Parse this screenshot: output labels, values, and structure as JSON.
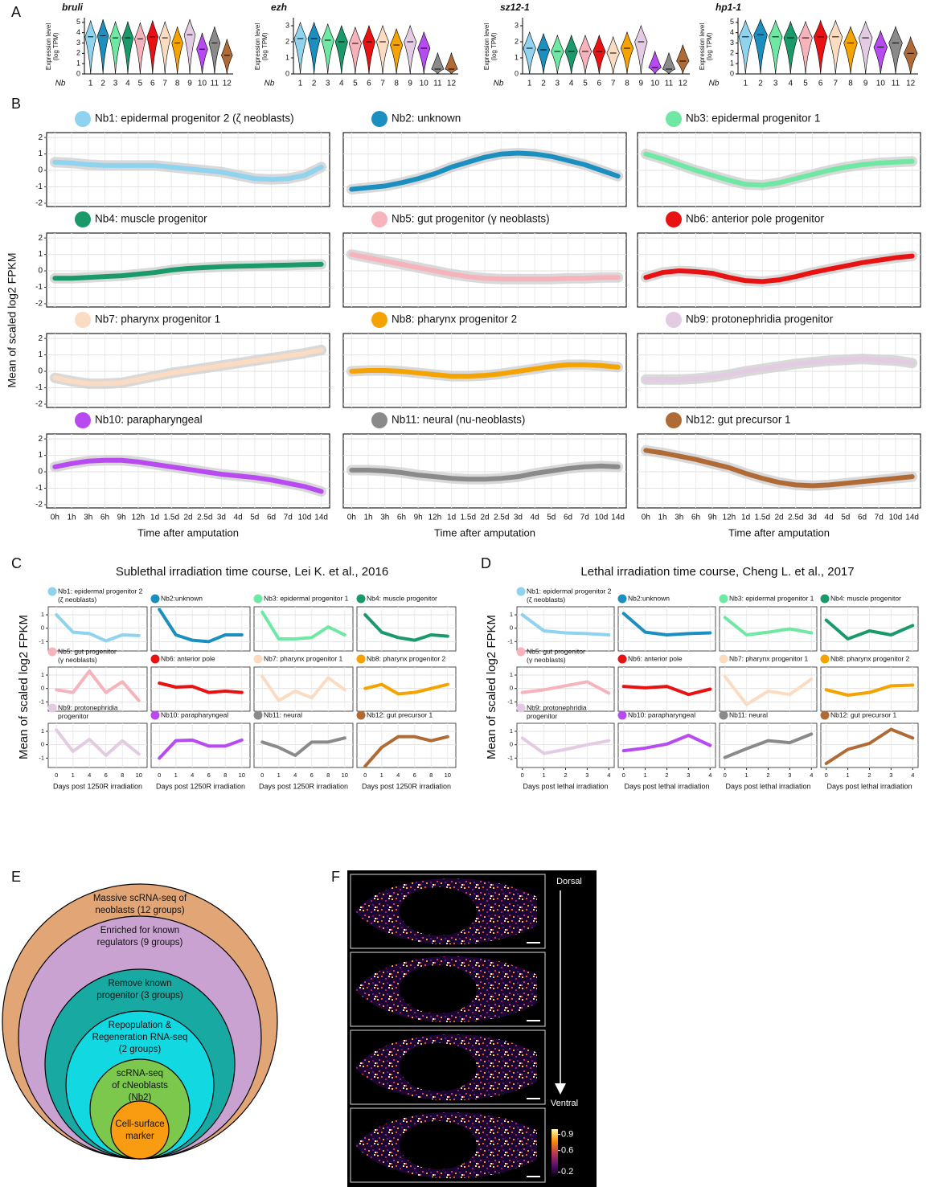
{
  "panel_labels": [
    "A",
    "B",
    "C",
    "D",
    "E",
    "F"
  ],
  "chart_data": [
    {
      "type": "violin",
      "title": "bruli",
      "ylabel": [
        "Expression level",
        "(log TPM)"
      ],
      "xlabel": "Nb",
      "categories": [
        "1",
        "2",
        "3",
        "4",
        "5",
        "6",
        "7",
        "8",
        "9",
        "10",
        "11",
        "12"
      ],
      "values": [
        3.6,
        3.7,
        3.5,
        3.5,
        3.4,
        3.6,
        3.5,
        3.0,
        3.8,
        2.4,
        3.0,
        1.8
      ],
      "colors": [
        "#8fd3ef",
        "#1a8fc0",
        "#6ee8a2",
        "#1a9a6a",
        "#f7b3bb",
        "#e81212",
        "#fbdcc2",
        "#f5a300",
        "#e3cce3",
        "#b84af2",
        "#8a8a8a",
        "#b06a35"
      ],
      "ylim": [
        0,
        5.3
      ],
      "yticks": [
        0,
        1,
        2,
        3,
        4,
        5
      ]
    },
    {
      "type": "violin",
      "title": "ezh",
      "ylabel": [
        "Expression level",
        "(log TPM)"
      ],
      "xlabel": "Nb",
      "categories": [
        "1",
        "2",
        "3",
        "4",
        "5",
        "6",
        "7",
        "8",
        "9",
        "10",
        "11",
        "12"
      ],
      "values": [
        2.2,
        2.2,
        2.1,
        2.0,
        1.9,
        2.0,
        2.0,
        1.8,
        2.0,
        1.6,
        0.3,
        0.3
      ],
      "colors": [
        "#8fd3ef",
        "#1a8fc0",
        "#6ee8a2",
        "#1a9a6a",
        "#f7b3bb",
        "#e81212",
        "#fbdcc2",
        "#f5a300",
        "#e3cce3",
        "#b84af2",
        "#8a8a8a",
        "#b06a35"
      ],
      "ylim": [
        0,
        3.4
      ],
      "yticks": [
        0,
        1,
        2,
        3
      ]
    },
    {
      "type": "violin",
      "title": "sz12-1",
      "ylabel": [
        "Expression level",
        "(log TPM)"
      ],
      "xlabel": "Nb",
      "categories": [
        "1",
        "2",
        "3",
        "4",
        "5",
        "6",
        "7",
        "8",
        "9",
        "10",
        "11",
        "12"
      ],
      "values": [
        1.6,
        1.5,
        1.4,
        1.4,
        1.4,
        1.4,
        1.3,
        1.6,
        2.0,
        0.4,
        0.3,
        0.8
      ],
      "colors": [
        "#8fd3ef",
        "#1a8fc0",
        "#6ee8a2",
        "#1a9a6a",
        "#f7b3bb",
        "#e81212",
        "#fbdcc2",
        "#f5a300",
        "#e3cce3",
        "#b84af2",
        "#8a8a8a",
        "#b06a35"
      ],
      "ylim": [
        0,
        3.4
      ],
      "yticks": [
        0,
        1,
        2,
        3
      ]
    },
    {
      "type": "violin",
      "title": "hp1-1",
      "ylabel": [
        "Expression level",
        "(log TPM)"
      ],
      "xlabel": "Nb",
      "categories": [
        "1",
        "2",
        "3",
        "4",
        "5",
        "6",
        "7",
        "8",
        "9",
        "10",
        "11",
        "12"
      ],
      "values": [
        3.6,
        3.8,
        3.6,
        3.5,
        3.5,
        3.6,
        3.6,
        3.0,
        3.5,
        2.6,
        3.0,
        2.0
      ],
      "colors": [
        "#8fd3ef",
        "#1a8fc0",
        "#6ee8a2",
        "#1a9a6a",
        "#f7b3bb",
        "#e81212",
        "#fbdcc2",
        "#f5a300",
        "#e3cce3",
        "#b84af2",
        "#8a8a8a",
        "#b06a35"
      ],
      "ylim": [
        0,
        5.3
      ],
      "yticks": [
        0,
        1,
        2,
        3,
        4,
        5
      ]
    },
    {
      "type": "line-facets",
      "ylabel": "Mean of scaled log2 FPKM",
      "xlabel": "Time after amputation",
      "categories": [
        "0h",
        "1h",
        "3h",
        "6h",
        "9h",
        "12h",
        "1d",
        "1.5d",
        "2d",
        "2.5d",
        "3d",
        "4d",
        "5d",
        "6d",
        "7d",
        "10d",
        "14d"
      ],
      "ylim": [
        -2.2,
        2.3
      ],
      "yticks": [
        -2,
        -1,
        0,
        1,
        2
      ],
      "grid": true,
      "series": [
        {
          "name": "Nb1: epidermal progenitor 2 (ζ neoblasts)",
          "color": "#8fd3ef",
          "values": [
            0.5,
            0.45,
            0.35,
            0.3,
            0.3,
            0.3,
            0.3,
            0.2,
            0.1,
            0,
            -0.1,
            -0.3,
            -0.5,
            -0.55,
            -0.5,
            -0.3,
            0.2
          ]
        },
        {
          "name": "Nb2: unknown",
          "color": "#1a8fc0",
          "values": [
            -1.15,
            -1.05,
            -0.95,
            -0.75,
            -0.5,
            -0.2,
            0.2,
            0.5,
            0.8,
            1.0,
            1.05,
            1.0,
            0.85,
            0.6,
            0.35,
            0.0,
            -0.35
          ]
        },
        {
          "name": "Nb3: epidermal progenitor 1",
          "color": "#6ee8a2",
          "values": [
            1.0,
            0.7,
            0.35,
            0,
            -0.3,
            -0.6,
            -0.85,
            -0.9,
            -0.75,
            -0.5,
            -0.25,
            0,
            0.2,
            0.35,
            0.45,
            0.5,
            0.55
          ]
        },
        {
          "name": "Nb4: muscle progenitor",
          "color": "#1a9a6a",
          "values": [
            -0.45,
            -0.45,
            -0.4,
            -0.35,
            -0.3,
            -0.2,
            -0.1,
            0.05,
            0.15,
            0.2,
            0.25,
            0.28,
            0.3,
            0.33,
            0.35,
            0.38,
            0.4
          ]
        },
        {
          "name": "Nb5: gut progenitor (γ neoblasts)",
          "color": "#f7b3bb",
          "values": [
            1.0,
            0.8,
            0.6,
            0.4,
            0.2,
            0,
            -0.2,
            -0.35,
            -0.45,
            -0.5,
            -0.5,
            -0.5,
            -0.5,
            -0.45,
            -0.45,
            -0.4,
            -0.4
          ]
        },
        {
          "name": "Nb6: anterior pole progenitor",
          "color": "#e81212",
          "values": [
            -0.4,
            -0.1,
            0,
            -0.05,
            -0.15,
            -0.4,
            -0.6,
            -0.65,
            -0.55,
            -0.35,
            -0.1,
            0.1,
            0.3,
            0.5,
            0.65,
            0.8,
            0.9
          ]
        },
        {
          "name": "Nb7: pharynx progenitor 1",
          "color": "#fbdcc2",
          "values": [
            -0.4,
            -0.6,
            -0.75,
            -0.75,
            -0.7,
            -0.5,
            -0.3,
            -0.1,
            0.05,
            0.2,
            0.35,
            0.5,
            0.65,
            0.8,
            0.95,
            1.1,
            1.3
          ]
        },
        {
          "name": "Nb8: pharynx progenitor 2",
          "color": "#f5a300",
          "values": [
            0,
            0.05,
            0.05,
            0,
            -0.1,
            -0.2,
            -0.3,
            -0.3,
            -0.25,
            -0.15,
            0,
            0.15,
            0.3,
            0.4,
            0.4,
            0.35,
            0.25
          ]
        },
        {
          "name": "Nb9: protonephridia progenitor",
          "color": "#e3cce3",
          "values": [
            -0.5,
            -0.5,
            -0.5,
            -0.45,
            -0.35,
            -0.2,
            0,
            0.15,
            0.3,
            0.45,
            0.55,
            0.65,
            0.7,
            0.75,
            0.7,
            0.65,
            0.5
          ]
        },
        {
          "name": "Nb10: parapharyngeal",
          "color": "#b84af2",
          "values": [
            0.3,
            0.5,
            0.65,
            0.7,
            0.7,
            0.6,
            0.45,
            0.3,
            0.15,
            0,
            -0.15,
            -0.25,
            -0.35,
            -0.5,
            -0.7,
            -0.9,
            -1.2
          ]
        },
        {
          "name": "Nb11: neural (nu-neoblasts)",
          "color": "#8a8a8a",
          "values": [
            0.1,
            0.1,
            0.05,
            -0.05,
            -0.2,
            -0.3,
            -0.4,
            -0.45,
            -0.45,
            -0.4,
            -0.3,
            -0.1,
            0.05,
            0.2,
            0.3,
            0.35,
            0.3
          ]
        },
        {
          "name": "Nb12: gut precursor 1",
          "color": "#b06a35",
          "values": [
            1.3,
            1.15,
            0.95,
            0.75,
            0.5,
            0.25,
            -0.1,
            -0.4,
            -0.65,
            -0.8,
            -0.85,
            -0.8,
            -0.7,
            -0.6,
            -0.5,
            -0.4,
            -0.3
          ]
        }
      ]
    },
    {
      "type": "line-facets",
      "title": "Sublethal irradiation time course, Lei K. et al., 2016",
      "ylabel": "Mean of scaled log2 FPKM",
      "xlabel": "Days post 1250R irradiation",
      "categories": [
        "0",
        "1",
        "4",
        "6",
        "8",
        "10"
      ],
      "ylim": [
        -1.7,
        1.6
      ],
      "yticks": [
        -1,
        0,
        1
      ],
      "grid": true,
      "series": [
        {
          "name": [
            "Nb1: epidermal progenitor 2",
            "(ζ neoblasts)"
          ],
          "color": "#8fd3ef",
          "values": [
            1.0,
            -0.3,
            -0.4,
            -0.95,
            -0.5,
            -0.55
          ]
        },
        {
          "name": "Nb2:unknown",
          "color": "#1a8fc0",
          "values": [
            1.4,
            -0.5,
            -0.9,
            -1.0,
            -0.5,
            -0.5
          ]
        },
        {
          "name": "Nb3: epidermal progenitor 1",
          "color": "#6ee8a2",
          "values": [
            1.2,
            -0.8,
            -0.8,
            -0.7,
            0.1,
            -0.5
          ]
        },
        {
          "name": "Nb4: muscle progenitor",
          "color": "#1a9a6a",
          "values": [
            1.0,
            -0.3,
            -0.7,
            -0.9,
            -0.5,
            -0.6
          ]
        },
        {
          "name": [
            "Nb5: gut progenitor",
            "(γ neoblasts)"
          ],
          "color": "#f7b3bb",
          "values": [
            -0.1,
            -0.3,
            1.3,
            -0.3,
            0.5,
            -0.9
          ]
        },
        {
          "name": "Nb6: anterior pole",
          "color": "#e81212",
          "values": [
            0.4,
            0.1,
            0.15,
            -0.3,
            -0.2,
            -0.3
          ]
        },
        {
          "name": "Nb7: pharynx progenitor 1",
          "color": "#fbdcc2",
          "values": [
            0.9,
            -0.9,
            -0.2,
            -0.7,
            0.8,
            -0.1
          ]
        },
        {
          "name": "Nb8: pharynx progenitor 2",
          "color": "#f5a300",
          "values": [
            0.0,
            0.3,
            -0.4,
            -0.3,
            0.0,
            0.3
          ]
        },
        {
          "name": [
            "Nb9: protonephridia",
            "progenitor"
          ],
          "color": "#e3cce3",
          "values": [
            1.1,
            -0.5,
            0.4,
            -0.8,
            0.3,
            -0.7
          ]
        },
        {
          "name": "Nb10: parapharyngeal",
          "color": "#b84af2",
          "values": [
            -1.0,
            0.3,
            0.35,
            -0.1,
            -0.1,
            0.35
          ]
        },
        {
          "name": "Nb11: neural",
          "color": "#8a8a8a",
          "values": [
            0.2,
            -0.2,
            -0.8,
            0.2,
            0.2,
            0.5
          ]
        },
        {
          "name": "Nb12: gut precursor 1",
          "color": "#b06a35",
          "values": [
            -1.6,
            -0.2,
            0.6,
            0.6,
            0.3,
            0.6
          ]
        }
      ]
    },
    {
      "type": "line-facets",
      "title": "Lethal irradiation time course, Cheng L. et al., 2017",
      "ylabel": "Mean of scaled log2 FPKM",
      "xlabel": "Days post lethal irradiation",
      "x": [
        0,
        1,
        2,
        3,
        4
      ],
      "xlim": [
        -0.25,
        4.25
      ],
      "xticks": [
        0,
        1,
        2,
        3,
        4
      ],
      "ylim": [
        -1.7,
        1.6
      ],
      "yticks": [
        -1,
        0,
        1
      ],
      "grid": true,
      "series": [
        {
          "name": [
            "Nb1: epidermal progenitor 2",
            "(ζ neoblasts)"
          ],
          "color": "#8fd3ef",
          "values": [
            1.0,
            -0.2,
            -0.35,
            -0.4,
            -0.5
          ]
        },
        {
          "name": "Nb2:unknown",
          "color": "#1a8fc0",
          "values": [
            1.1,
            -0.3,
            -0.5,
            -0.4,
            -0.35
          ]
        },
        {
          "name": "Nb3: epidermal progenitor 1",
          "color": "#6ee8a2",
          "values": [
            0.8,
            -0.5,
            -0.3,
            -0.05,
            -0.35
          ]
        },
        {
          "name": "Nb4: muscle progenitor",
          "color": "#1a9a6a",
          "values": [
            0.6,
            -0.8,
            -0.2,
            -0.5,
            0.2
          ]
        },
        {
          "name": [
            "Nb5: gut progenitor",
            "(γ neoblasts)"
          ],
          "color": "#f7b3bb",
          "values": [
            -0.3,
            -0.1,
            0.2,
            0.5,
            -0.35
          ]
        },
        {
          "name": "Nb6: anterior pole",
          "color": "#e81212",
          "values": [
            0.15,
            0.05,
            0.15,
            -0.45,
            -0.05
          ]
        },
        {
          "name": "Nb7: pharynx progenitor 1",
          "color": "#fbdcc2",
          "values": [
            0.9,
            -1.2,
            -0.2,
            -0.45,
            0.7
          ]
        },
        {
          "name": "Nb8: pharynx progenitor 2",
          "color": "#f5a300",
          "values": [
            -0.1,
            -0.5,
            -0.3,
            0.2,
            0.25
          ]
        },
        {
          "name": [
            "Nb9: protonephridia",
            "progenitor"
          ],
          "color": "#e3cce3",
          "values": [
            0.5,
            -0.65,
            -0.35,
            0,
            0.3
          ]
        },
        {
          "name": "Nb10: parapharyngeal",
          "color": "#b84af2",
          "values": [
            -0.45,
            -0.25,
            0.05,
            0.7,
            -0.05
          ]
        },
        {
          "name": "Nb11: neural",
          "color": "#8a8a8a",
          "values": [
            -0.95,
            -0.3,
            0.3,
            0.15,
            0.8
          ]
        },
        {
          "name": "Nb12: gut precursor 1",
          "color": "#b06a35",
          "values": [
            -1.4,
            -0.35,
            0.1,
            1.15,
            0.5
          ]
        }
      ]
    }
  ],
  "diagram_e": {
    "circles": [
      {
        "label": [
          "Massive scRNA-seq of",
          "neoblasts (12 groups)"
        ],
        "color": "#e2a676"
      },
      {
        "label": [
          "Enriched for known",
          "regulators (9 groups)"
        ],
        "color": "#c9a2d2"
      },
      {
        "label": [
          "Remove known",
          "progenitor (3 groups)"
        ],
        "color": "#18aaa2"
      },
      {
        "label": [
          "Repopulation &",
          "Regeneration RNA-seq",
          "(2 groups)"
        ],
        "color": "#12d8e2"
      },
      {
        "label": [
          "scRNA-seq",
          "of cNeoblasts",
          "(Nb2)"
        ],
        "color": "#7cc84c"
      },
      {
        "label": [
          "Cell-surface",
          "marker"
        ],
        "color": "#f99c12"
      }
    ]
  },
  "image_f": {
    "top_label": "Dorsal",
    "bottom_label": "Ventral",
    "colorbar": {
      "lim": [
        0.1,
        1.0
      ],
      "ticks": [
        0.9,
        0.6,
        0.2
      ]
    }
  }
}
